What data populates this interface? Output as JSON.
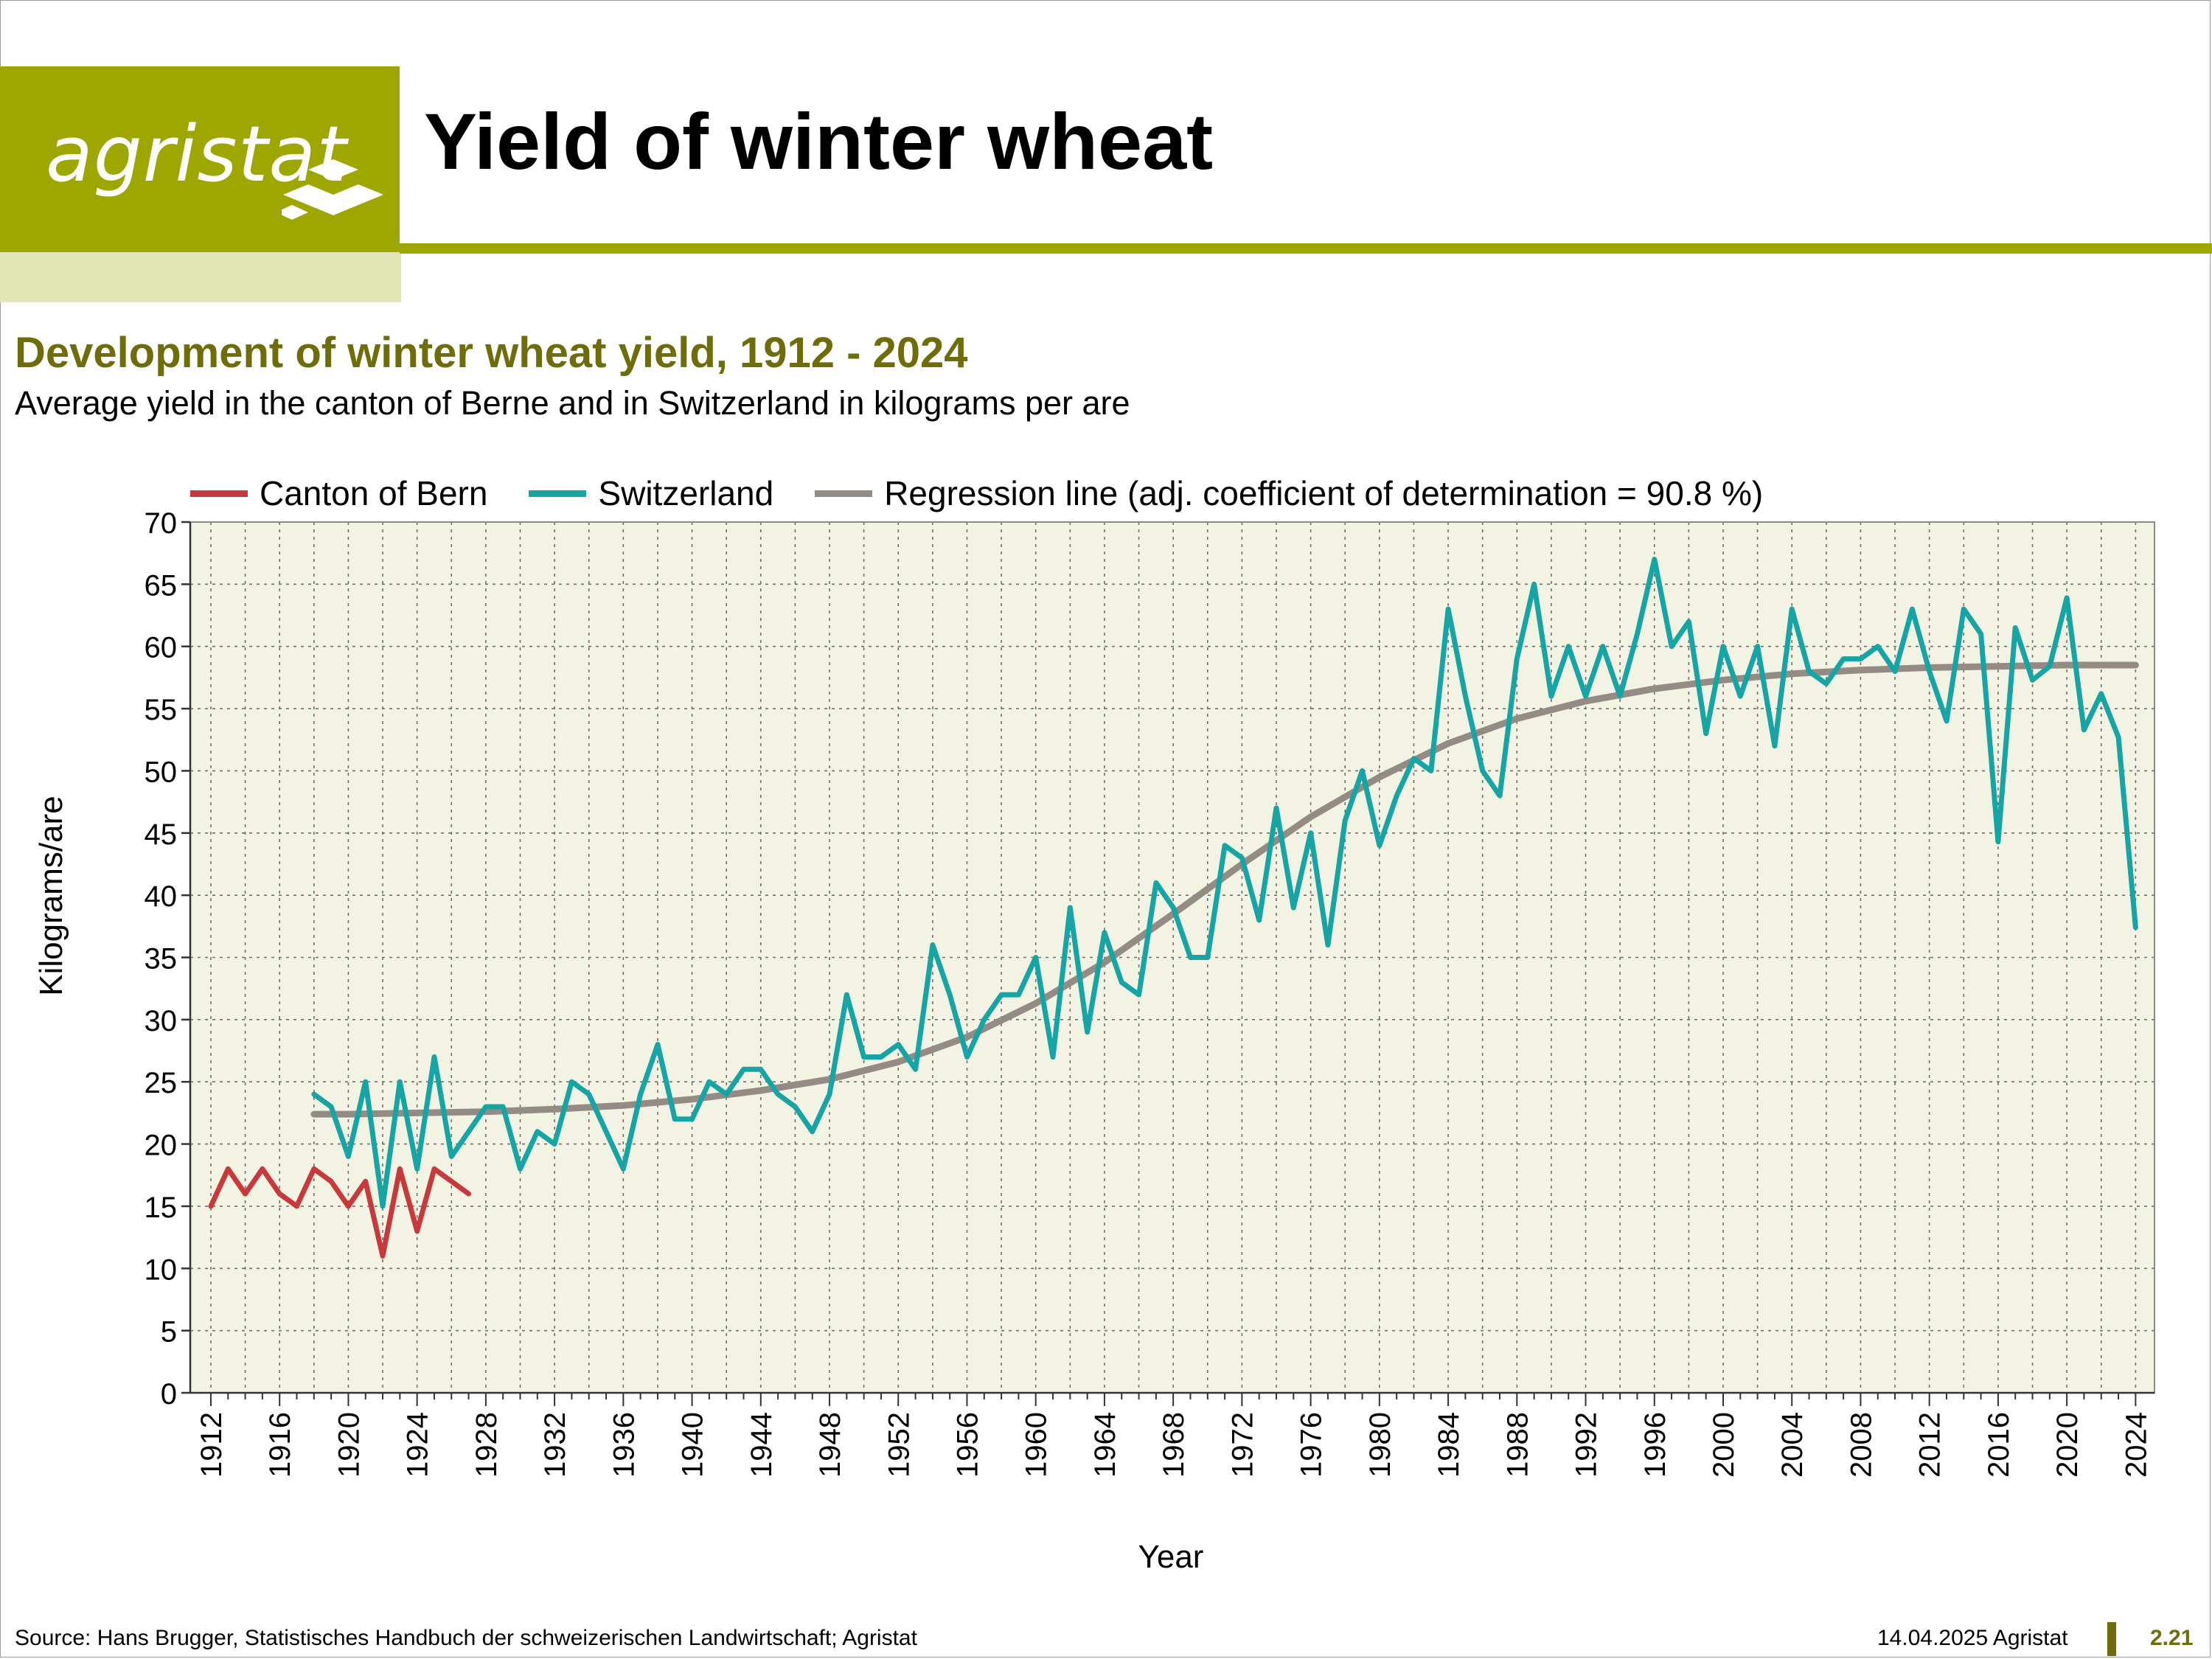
{
  "brand": {
    "logo_text": "agristat",
    "olive": "#9ea600",
    "olive_light": "#e1e4b3",
    "olive_dark": "#6e6d0a"
  },
  "header": {
    "title": "Yield of winter wheat"
  },
  "chart_data": {
    "type": "line",
    "title": "Development of winter wheat yield, 1912 - 2024",
    "subtitle": "Average yield in the canton of Berne and in Switzerland in kilograms per are",
    "xlabel": "Year",
    "ylabel": "Kilograms/are",
    "xlim": [
      1912,
      2024
    ],
    "ylim": [
      0,
      70
    ],
    "x_ticks": [
      1912,
      1916,
      1920,
      1924,
      1928,
      1932,
      1936,
      1940,
      1944,
      1948,
      1952,
      1956,
      1960,
      1964,
      1968,
      1972,
      1976,
      1980,
      1984,
      1988,
      1992,
      1996,
      2000,
      2004,
      2008,
      2012,
      2016,
      2020,
      2024
    ],
    "y_ticks": [
      0,
      5,
      10,
      15,
      20,
      25,
      30,
      35,
      40,
      45,
      50,
      55,
      60,
      65,
      70
    ],
    "grid": true,
    "legend_position": "top",
    "plot_background": "#f3f3e4",
    "series": [
      {
        "name": "Canton of Bern",
        "color": "#c8393d",
        "x": [
          1912,
          1913,
          1914,
          1915,
          1916,
          1917,
          1918,
          1919,
          1920,
          1921,
          1922,
          1923,
          1924,
          1925,
          1926,
          1927
        ],
        "y": [
          15,
          18,
          16,
          18,
          16,
          15,
          18,
          17,
          15,
          17,
          11,
          18,
          13,
          18,
          17,
          16
        ]
      },
      {
        "name": "Switzerland",
        "color": "#17a4a4",
        "x": [
          1918,
          1919,
          1920,
          1921,
          1922,
          1923,
          1924,
          1925,
          1926,
          1927,
          1928,
          1929,
          1930,
          1931,
          1932,
          1933,
          1934,
          1935,
          1936,
          1937,
          1938,
          1939,
          1940,
          1941,
          1942,
          1943,
          1944,
          1945,
          1946,
          1947,
          1948,
          1949,
          1950,
          1951,
          1952,
          1953,
          1954,
          1955,
          1956,
          1957,
          1958,
          1959,
          1960,
          1961,
          1962,
          1963,
          1964,
          1965,
          1966,
          1967,
          1968,
          1969,
          1970,
          1971,
          1972,
          1973,
          1974,
          1975,
          1976,
          1977,
          1978,
          1979,
          1980,
          1981,
          1982,
          1983,
          1984,
          1985,
          1986,
          1987,
          1988,
          1989,
          1990,
          1991,
          1992,
          1993,
          1994,
          1995,
          1996,
          1997,
          1998,
          1999,
          2000,
          2001,
          2002,
          2003,
          2004,
          2005,
          2006,
          2007,
          2008,
          2009,
          2010,
          2011,
          2012,
          2013,
          2014,
          2015,
          2016,
          2017,
          2018,
          2019,
          2020,
          2021,
          2022,
          2023,
          2024
        ],
        "y": [
          24,
          23,
          19,
          25,
          15,
          25,
          18,
          27,
          19,
          21,
          23,
          23,
          18,
          21,
          20,
          25,
          24,
          21,
          18,
          24,
          28,
          22,
          22,
          25,
          24,
          26,
          26,
          24,
          23,
          21,
          24,
          32,
          27,
          27,
          28,
          26,
          36,
          32,
          27,
          30,
          32,
          32,
          35,
          27,
          39,
          29,
          37,
          33,
          32,
          41,
          39,
          35,
          35,
          44,
          43,
          38,
          47,
          39,
          45,
          36,
          46,
          50,
          44,
          48,
          51,
          50,
          63,
          56,
          50,
          48,
          59,
          65,
          56,
          60,
          56,
          60,
          56,
          61,
          67,
          60,
          62,
          53,
          60,
          56,
          60,
          52,
          63,
          58,
          57,
          59,
          59,
          60,
          58,
          63,
          58,
          54,
          63,
          61,
          44.3,
          61.5,
          57.3,
          58.4,
          63.9,
          53.3,
          56.2,
          52.7,
          37.4
        ]
      },
      {
        "name": "Regression line (adj. coefficient of determination = 90.8 %)",
        "color": "#948b84",
        "x": [
          1918,
          1920,
          1924,
          1928,
          1932,
          1936,
          1940,
          1944,
          1948,
          1952,
          1956,
          1960,
          1964,
          1968,
          1972,
          1976,
          1980,
          1984,
          1988,
          1992,
          1996,
          2000,
          2004,
          2008,
          2012,
          2016,
          2020,
          2024
        ],
        "y": [
          22.4,
          22.4,
          22.5,
          22.6,
          22.8,
          23.1,
          23.6,
          24.3,
          25.2,
          26.6,
          28.6,
          31.3,
          34.6,
          38.5,
          42.5,
          46.3,
          49.5,
          52.2,
          54.2,
          55.6,
          56.6,
          57.3,
          57.8,
          58.1,
          58.3,
          58.4,
          58.5,
          58.5
        ]
      }
    ]
  },
  "axes": {
    "y_label": "Kilograms/are",
    "x_label": "Year"
  },
  "footer": {
    "source": "Source: Hans Brugger, Statistisches Handbuch der schweizerischen Landwirtschaft; Agristat",
    "date": "14.04.2025 Agristat",
    "page": "2.21"
  }
}
